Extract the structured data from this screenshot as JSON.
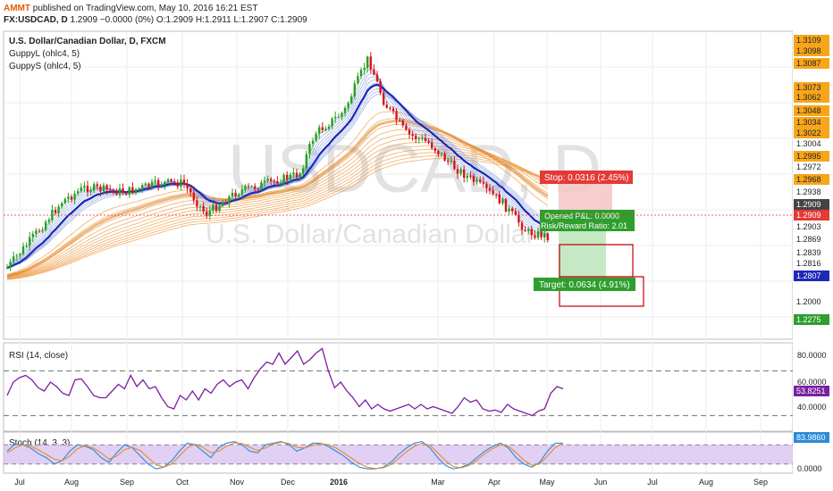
{
  "header": {
    "user": "AMMT",
    "published": "published on TradingView.com, May 10, 2016 16:21 EST",
    "symbol_line": "FX:USDCAD, D",
    "ohlc": "1.2909 −0.0000 (0%) O:1.2909 H:1.2911 L:1.2907 C:1.2909"
  },
  "legend": {
    "title": "U.S. Dollar/Canadian Dollar, D, FXCM",
    "ind1": "GuppyL (ohlc4, 5)",
    "ind2": "GuppyS (ohlc4, 5)"
  },
  "watermark": {
    "symbol": "USDCAD, D",
    "name": "U.S. Dollar/Canadian Dollar"
  },
  "trade": {
    "stop_label": "Stop: 0.0316 (2.45%)",
    "pl_label": "Opened P&L: 0.0000",
    "rr_label": "Risk/Reward Ratio: 2.01",
    "target_label": "Target: 0.0634 (4.91%)"
  },
  "colors": {
    "up": "#26a11a",
    "down": "#d8151b",
    "blue_ma": "#1d29b8",
    "blue_ribbon": "#7f9ad8",
    "orange_ribbon": "#f0a04e",
    "rsi": "#7b1fa2",
    "stoch_k": "#2a8bd8",
    "stoch_d": "#e58a2a",
    "stoch_band": "#d9c3f1",
    "price_tag": "#f7a51b"
  },
  "chart_data": [
    {
      "type": "candlestick",
      "title": "U.S. Dollar/Canadian Dollar, D, FXCM",
      "x": [
        "2015-07-01",
        "2015-07-15",
        "2015-08-01",
        "2015-08-15",
        "2015-09-01",
        "2015-09-15",
        "2015-10-01",
        "2015-10-15",
        "2015-11-01",
        "2015-11-15",
        "2015-12-01",
        "2015-12-15",
        "2016-01-01",
        "2016-01-10",
        "2016-01-20",
        "2016-02-01",
        "2016-02-15",
        "2016-03-01",
        "2016-03-15",
        "2016-04-01",
        "2016-04-15",
        "2016-05-01",
        "2016-05-10"
      ],
      "close": [
        1.248,
        1.268,
        1.305,
        1.319,
        1.325,
        1.319,
        1.305,
        1.303,
        1.319,
        1.33,
        1.338,
        1.382,
        1.404,
        1.44,
        1.452,
        1.41,
        1.392,
        1.348,
        1.318,
        1.302,
        1.275,
        1.26,
        1.2909
      ],
      "ylim": [
        1.215,
        1.314
      ],
      "price_tags": [
        "1.3109",
        "1.3098",
        "1.3087",
        "1.3073",
        "1.3062",
        "1.3048",
        "1.3034",
        "1.3022",
        "1.3004",
        "1.2995",
        "1.2972",
        "1.2968",
        "1.2938",
        "1.2909",
        "1.2909",
        "1.2903",
        "1.2869",
        "1.2839",
        "1.2816",
        "1.2807",
        "1.2000",
        "1.2275"
      ],
      "x_ticks": [
        "Jul",
        "Aug",
        "Sep",
        "Oct",
        "Nov",
        "Dec",
        "2016",
        "Mar",
        "Apr",
        "May",
        "Jun",
        "Jul",
        "Aug",
        "Sep"
      ]
    },
    {
      "type": "line",
      "title": "RSI (14, close)",
      "values": [
        48,
        60,
        64,
        66,
        62,
        55,
        52,
        60,
        56,
        50,
        48,
        62,
        63,
        56,
        48,
        46,
        46,
        52,
        58,
        54,
        66,
        56,
        62,
        54,
        56,
        46,
        38,
        36,
        48,
        44,
        52,
        44,
        54,
        50,
        58,
        62,
        56,
        60,
        62,
        54,
        64,
        72,
        78,
        76,
        86,
        76,
        82,
        88,
        76,
        80,
        86,
        90,
        70,
        55,
        60,
        52,
        46,
        38,
        44,
        36,
        40,
        36,
        34,
        36,
        38,
        40,
        36,
        40,
        36,
        38,
        36,
        34,
        32,
        38,
        46,
        42,
        44,
        36,
        34,
        35,
        33,
        40,
        36,
        34,
        32,
        30,
        34,
        36,
        50,
        56,
        54
      ],
      "y_ticks": [
        "80.0000",
        "60.0000",
        "40.0000"
      ],
      "last_value": "53.8251",
      "levels": [
        70,
        30
      ]
    },
    {
      "type": "line",
      "title": "Stoch (14, 3, 3)",
      "series": [
        {
          "values": [
            60,
            82,
            80,
            70,
            52,
            40,
            20,
            30,
            60,
            80,
            75,
            65,
            40,
            25,
            55,
            80,
            70,
            45,
            20,
            5,
            10,
            30,
            60,
            85,
            80,
            60,
            40,
            70,
            85,
            90,
            80,
            60,
            55,
            80,
            85,
            90,
            80,
            60,
            70,
            85,
            85,
            75,
            60,
            45,
            25,
            10,
            5,
            5,
            10,
            25,
            50,
            70,
            85,
            90,
            70,
            40,
            15,
            5,
            10,
            20,
            40,
            60,
            75,
            85,
            70,
            40,
            20,
            10,
            25,
            60,
            85,
            85
          ]
        },
        {
          "values": [
            55,
            70,
            80,
            76,
            64,
            50,
            35,
            30,
            45,
            68,
            77,
            70,
            55,
            35,
            45,
            65,
            72,
            62,
            40,
            18,
            10,
            20,
            45,
            70,
            82,
            72,
            55,
            60,
            75,
            86,
            84,
            72,
            62,
            70,
            82,
            88,
            84,
            72,
            70,
            78,
            84,
            80,
            70,
            55,
            38,
            22,
            10,
            6,
            8,
            18,
            38,
            58,
            75,
            85,
            78,
            55,
            30,
            12,
            8,
            16,
            32,
            52,
            68,
            80,
            76,
            55,
            32,
            16,
            20,
            45,
            72,
            84
          ]
        }
      ],
      "y_ticks": [
        "0.0000"
      ],
      "last_value": "83.9860",
      "band": [
        20,
        80
      ]
    }
  ]
}
